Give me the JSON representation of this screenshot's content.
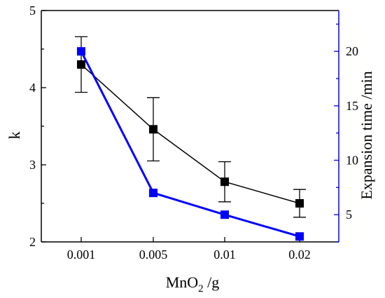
{
  "chart_data": {
    "type": "line",
    "categories": [
      "0.001",
      "0.005",
      "0.01",
      "0.02"
    ],
    "xlabel_main": "MnO",
    "xlabel_sub": "2",
    "xlabel_unit": " /g",
    "ylabel": "k",
    "y2label": "Expansion time /min",
    "ylim": [
      2,
      5
    ],
    "yticks": [
      "2",
      "3",
      "4",
      "5"
    ],
    "y2lim": [
      2.5,
      23.75
    ],
    "y2ticks": [
      "5",
      "10",
      "15",
      "20"
    ],
    "grid": false,
    "series": [
      {
        "axis": "left",
        "color": "#000000",
        "marker": "square",
        "values": [
          4.3,
          3.46,
          2.78,
          2.5
        ],
        "error_low": [
          3.94,
          3.05,
          2.52,
          2.32
        ],
        "error_high": [
          4.66,
          3.87,
          3.04,
          2.68
        ]
      },
      {
        "axis": "right",
        "color": "#0000FF",
        "marker": "square",
        "values": [
          20,
          7,
          5,
          3
        ]
      }
    ]
  }
}
